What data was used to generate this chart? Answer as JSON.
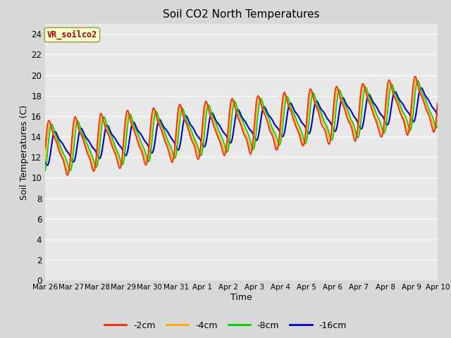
{
  "title": "Soil CO2 North Temperatures",
  "xlabel": "Time",
  "ylabel": "Soil Temperatures (C)",
  "annotation": "VR_soilco2",
  "annotation_color": "#aa0000",
  "annotation_bg": "#ffffcc",
  "annotation_border": "#999944",
  "ylim": [
    0,
    25
  ],
  "yticks": [
    0,
    2,
    4,
    6,
    8,
    10,
    12,
    14,
    16,
    18,
    20,
    22,
    24
  ],
  "bg_color": "#e8e8e8",
  "grid_color": "#ffffff",
  "series": {
    "-2cm": {
      "color": "#ff2200",
      "lw": 1.2
    },
    "-4cm": {
      "color": "#ffaa00",
      "lw": 1.2
    },
    "-8cm": {
      "color": "#00cc00",
      "lw": 1.2
    },
    "-16cm": {
      "color": "#0000cc",
      "lw": 1.5
    }
  },
  "xtick_labels": [
    "Mar 26",
    "Mar 27",
    "Mar 28",
    "Mar 29",
    "Mar 30",
    "Mar 31",
    "Apr 1",
    "Apr 2",
    "Apr 3",
    "Apr 4",
    "Apr 5",
    "Apr 6",
    "Apr 7",
    "Apr 8",
    "Apr 9",
    "Apr 10"
  ],
  "n_points": 480,
  "figsize": [
    6.4,
    4.8
  ],
  "dpi": 100
}
